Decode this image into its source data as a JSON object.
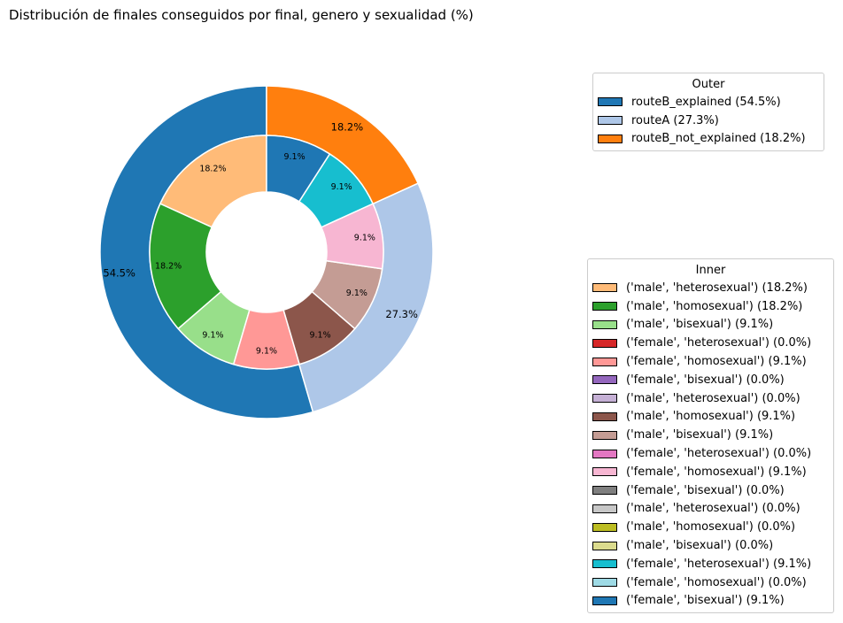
{
  "chart_data": {
    "type": "pie",
    "title": "Distribución de finales conseguidos por final, genero y sexualidad (%)",
    "outer": {
      "legend_title": "Outer",
      "slices": [
        {
          "label": "routeB_explained",
          "value": 54.5,
          "display": "54.5%",
          "legend": "routeB_explained (54.5%)",
          "color": "#1f77b4"
        },
        {
          "label": "routeA",
          "value": 27.3,
          "display": "27.3%",
          "legend": "routeA (27.3%)",
          "color": "#aec7e8"
        },
        {
          "label": "routeB_not_explained",
          "value": 18.2,
          "display": "18.2%",
          "legend": "routeB_not_explained (18.2%)",
          "color": "#ff7f0e"
        }
      ]
    },
    "inner": {
      "legend_title": "Inner",
      "slices": [
        {
          "value": 18.2,
          "display": "18.2%",
          "legend": "('male', 'heterosexual') (18.2%)",
          "color": "#ffbb78"
        },
        {
          "value": 18.2,
          "display": "18.2%",
          "legend": "('male', 'homosexual') (18.2%)",
          "color": "#2ca02c"
        },
        {
          "value": 9.1,
          "display": "9.1%",
          "legend": "('male', 'bisexual') (9.1%)",
          "color": "#98df8a"
        },
        {
          "value": 0.0,
          "display": "",
          "legend": "('female', 'heterosexual') (0.0%)",
          "color": "#d62728"
        },
        {
          "value": 9.1,
          "display": "9.1%",
          "legend": "('female', 'homosexual') (9.1%)",
          "color": "#ff9896"
        },
        {
          "value": 0.0,
          "display": "",
          "legend": "('female', 'bisexual') (0.0%)",
          "color": "#9467bd"
        },
        {
          "value": 0.0,
          "display": "",
          "legend": "('male', 'heterosexual') (0.0%)",
          "color": "#c5b0d5"
        },
        {
          "value": 9.1,
          "display": "9.1%",
          "legend": "('male', 'homosexual') (9.1%)",
          "color": "#8c564b"
        },
        {
          "value": 9.1,
          "display": "9.1%",
          "legend": "('male', 'bisexual') (9.1%)",
          "color": "#c49c94"
        },
        {
          "value": 0.0,
          "display": "",
          "legend": "('female', 'heterosexual') (0.0%)",
          "color": "#e377c2"
        },
        {
          "value": 9.1,
          "display": "9.1%",
          "legend": "('female', 'homosexual') (9.1%)",
          "color": "#f7b6d2"
        },
        {
          "value": 0.0,
          "display": "",
          "legend": "('female', 'bisexual') (0.0%)",
          "color": "#7f7f7f"
        },
        {
          "value": 0.0,
          "display": "",
          "legend": "('male', 'heterosexual') (0.0%)",
          "color": "#c7c7c7"
        },
        {
          "value": 0.0,
          "display": "",
          "legend": "('male', 'homosexual') (0.0%)",
          "color": "#bcbd22"
        },
        {
          "value": 0.0,
          "display": "",
          "legend": "('male', 'bisexual') (0.0%)",
          "color": "#dbdb8d"
        },
        {
          "value": 9.1,
          "display": "9.1%",
          "legend": "('female', 'heterosexual') (9.1%)",
          "color": "#17becf"
        },
        {
          "value": 0.0,
          "display": "",
          "legend": "('female', 'homosexual') (0.0%)",
          "color": "#9edae5"
        },
        {
          "value": 9.1,
          "display": "9.1%",
          "legend": "('female', 'bisexual') (9.1%)",
          "color": "#1f77b4"
        }
      ]
    },
    "start_angle_deg": 90,
    "direction": "counterclockwise",
    "legend_placement": "right"
  }
}
